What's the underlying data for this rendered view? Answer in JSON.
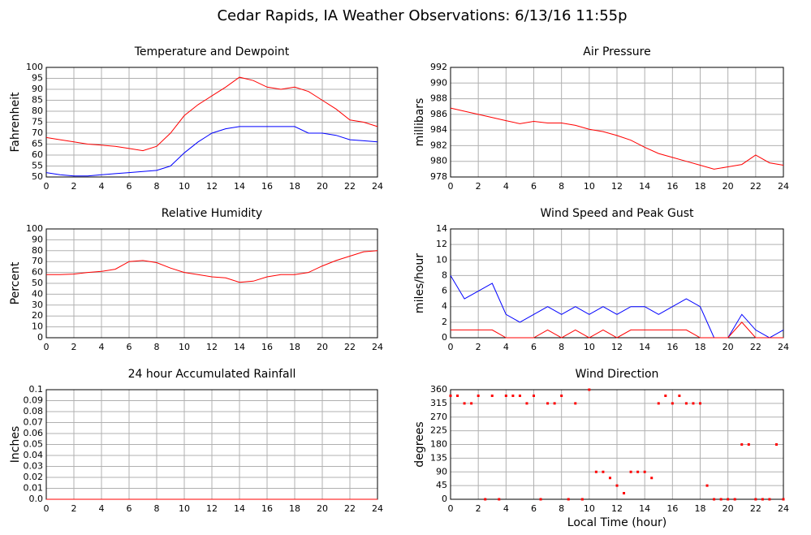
{
  "title": "Cedar Rapids, IA Weather Observations: 6/13/16 11:55p",
  "chart_data": [
    {
      "type": "line",
      "title": "Temperature and Dewpoint",
      "ylabel": "Fahrenheit",
      "x": [
        0,
        1,
        2,
        3,
        4,
        5,
        6,
        7,
        8,
        9,
        10,
        11,
        12,
        13,
        14,
        15,
        16,
        17,
        18,
        19,
        20,
        21,
        22,
        23,
        24
      ],
      "series": [
        {
          "name": "Temperature",
          "color": "#ff0000",
          "values": [
            68,
            67,
            66,
            65,
            64.5,
            64,
            63,
            62,
            64,
            70,
            78,
            83,
            87,
            91,
            95.5,
            94,
            91,
            90,
            91,
            89,
            85,
            81,
            76,
            75,
            73
          ]
        },
        {
          "name": "Dewpoint",
          "color": "#0000ff",
          "values": [
            52,
            51,
            50.5,
            50.5,
            51,
            51.5,
            52,
            52.5,
            53,
            55,
            61,
            66,
            70,
            72,
            73,
            73,
            73,
            73,
            73,
            70,
            70,
            69,
            67,
            66.5,
            66
          ]
        }
      ],
      "xlim": [
        0,
        24
      ],
      "xticks": [
        0,
        2,
        4,
        6,
        8,
        10,
        12,
        14,
        16,
        18,
        20,
        22,
        24
      ],
      "ylim": [
        50,
        100
      ],
      "yticks": [
        50,
        55,
        60,
        65,
        70,
        75,
        80,
        85,
        90,
        95,
        100
      ],
      "grid": true
    },
    {
      "type": "line",
      "title": "Air Pressure",
      "ylabel": "millibars",
      "x": [
        0,
        1,
        2,
        3,
        4,
        5,
        6,
        7,
        8,
        9,
        10,
        11,
        12,
        13,
        14,
        15,
        16,
        17,
        18,
        19,
        20,
        21,
        22,
        23,
        24
      ],
      "series": [
        {
          "name": "Pressure",
          "color": "#ff0000",
          "values": [
            986.8,
            986.4,
            986,
            985.6,
            985.2,
            984.8,
            985.1,
            984.9,
            984.9,
            984.6,
            984.1,
            983.8,
            983.3,
            982.7,
            981.8,
            981,
            980.5,
            980,
            979.5,
            979,
            979.3,
            979.6,
            980.8,
            979.8,
            979.5
          ]
        }
      ],
      "xlim": [
        0,
        24
      ],
      "xticks": [
        0,
        2,
        4,
        6,
        8,
        10,
        12,
        14,
        16,
        18,
        20,
        22,
        24
      ],
      "ylim": [
        978,
        992
      ],
      "yticks": [
        978,
        980,
        982,
        984,
        986,
        988,
        990,
        992
      ],
      "grid": true
    },
    {
      "type": "line",
      "title": "Relative Humidity",
      "ylabel": "Percent",
      "x": [
        0,
        1,
        2,
        3,
        4,
        5,
        6,
        7,
        8,
        9,
        10,
        11,
        12,
        13,
        14,
        15,
        16,
        17,
        18,
        19,
        20,
        21,
        22,
        23,
        24
      ],
      "series": [
        {
          "name": "Humidity",
          "color": "#ff0000",
          "values": [
            58,
            58,
            58.5,
            60,
            61,
            63,
            70,
            71,
            69,
            64,
            60,
            58,
            56,
            55,
            51,
            52,
            56,
            58,
            58,
            60,
            66,
            71,
            75,
            79,
            80
          ]
        }
      ],
      "xlim": [
        0,
        24
      ],
      "xticks": [
        0,
        2,
        4,
        6,
        8,
        10,
        12,
        14,
        16,
        18,
        20,
        22,
        24
      ],
      "ylim": [
        0,
        100
      ],
      "yticks": [
        0,
        10,
        20,
        30,
        40,
        50,
        60,
        70,
        80,
        90,
        100
      ],
      "grid": true
    },
    {
      "type": "line",
      "title": "Wind Speed and Peak Gust",
      "ylabel": "miles/hour",
      "x": [
        0,
        1,
        2,
        3,
        4,
        5,
        6,
        7,
        8,
        9,
        10,
        11,
        12,
        13,
        14,
        15,
        16,
        17,
        18,
        19,
        20,
        21,
        22,
        23,
        24
      ],
      "series": [
        {
          "name": "Wind Speed",
          "color": "#0000ff",
          "values": [
            8,
            5,
            6,
            7,
            3,
            2,
            3,
            4,
            3,
            4,
            3,
            4,
            3,
            4,
            4,
            3,
            4,
            5,
            4,
            0,
            0,
            3,
            1,
            0,
            1
          ]
        },
        {
          "name": "Peak Gust",
          "color": "#ff0000",
          "values": [
            1,
            1,
            1,
            1,
            0,
            0,
            0,
            1,
            0,
            1,
            0,
            1,
            0,
            1,
            1,
            1,
            1,
            1,
            0,
            0,
            0,
            2,
            0,
            0,
            0
          ]
        }
      ],
      "xlim": [
        0,
        24
      ],
      "xticks": [
        0,
        2,
        4,
        6,
        8,
        10,
        12,
        14,
        16,
        18,
        20,
        22,
        24
      ],
      "ylim": [
        0,
        14
      ],
      "yticks": [
        0,
        2,
        4,
        6,
        8,
        10,
        12,
        14
      ],
      "grid": true
    },
    {
      "type": "line",
      "title": "24 hour Accumulated Rainfall",
      "ylabel": "Inches",
      "x": [
        0,
        1,
        2,
        3,
        4,
        5,
        6,
        7,
        8,
        9,
        10,
        11,
        12,
        13,
        14,
        15,
        16,
        17,
        18,
        19,
        20,
        21,
        22,
        23,
        24
      ],
      "series": [
        {
          "name": "Rainfall",
          "color": "#ff0000",
          "values": [
            0,
            0,
            0,
            0,
            0,
            0,
            0,
            0,
            0,
            0,
            0,
            0,
            0,
            0,
            0,
            0,
            0,
            0,
            0,
            0,
            0,
            0,
            0,
            0,
            0
          ]
        }
      ],
      "xlim": [
        0,
        24
      ],
      "xticks": [
        0,
        2,
        4,
        6,
        8,
        10,
        12,
        14,
        16,
        18,
        20,
        22,
        24
      ],
      "ylim": [
        0,
        0.1
      ],
      "yticks": [
        {
          "value": 0,
          "label": "0.0"
        },
        0.01,
        0.02,
        0.03,
        0.04,
        0.05,
        0.06,
        0.07,
        0.08,
        0.09,
        0.1
      ],
      "grid": true
    },
    {
      "type": "scatter",
      "title": "Wind Direction",
      "ylabel": "degrees",
      "xlabel": "Local Time (hour)",
      "x": [
        0,
        0.5,
        1,
        1.5,
        2,
        2.5,
        3,
        3.5,
        4,
        4.5,
        5,
        5.5,
        6,
        6.5,
        7,
        7.5,
        8,
        8.5,
        9,
        9.5,
        10,
        10.5,
        11,
        11.5,
        12,
        12.5,
        13,
        13.5,
        14,
        14.5,
        15,
        15.5,
        16,
        16.5,
        17,
        17.5,
        18,
        18.5,
        19,
        19.5,
        20,
        20.5,
        21,
        21.5,
        22,
        22.5,
        23,
        23.5,
        24
      ],
      "series": [
        {
          "name": "Direction",
          "color": "#ff0000",
          "values": [
            340,
            340,
            315,
            315,
            340,
            0,
            340,
            0,
            340,
            340,
            340,
            315,
            340,
            0,
            315,
            315,
            340,
            0,
            315,
            0,
            360,
            90,
            90,
            70,
            45,
            20,
            90,
            90,
            90,
            70,
            315,
            340,
            315,
            340,
            315,
            315,
            315,
            45,
            0,
            0,
            0,
            0,
            180,
            180,
            0,
            0,
            0,
            180,
            0
          ]
        }
      ],
      "xlim": [
        0,
        24
      ],
      "xticks": [
        0,
        2,
        4,
        6,
        8,
        10,
        12,
        14,
        16,
        18,
        20,
        22,
        24
      ],
      "ylim": [
        0,
        360
      ],
      "yticks": [
        0,
        45,
        90,
        135,
        180,
        225,
        270,
        315,
        360
      ],
      "grid": true
    }
  ]
}
